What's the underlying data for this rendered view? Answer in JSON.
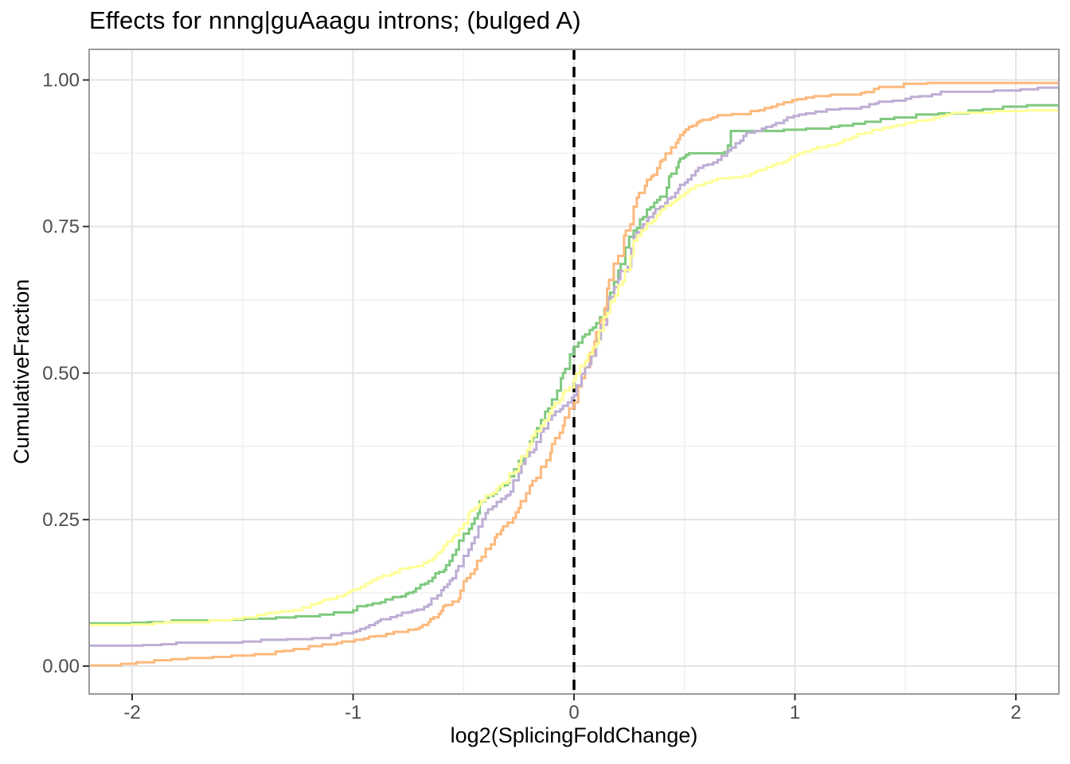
{
  "figure": {
    "background": "#ffffff",
    "text_color": "#4d4d4d",
    "title_color": "#000000"
  },
  "chart_data": {
    "type": "line",
    "subtype": "ecdf-step",
    "title": "Effects for nnng|guAaagu introns; (bulged A)",
    "xlabel": "log2(SplicingFoldChange)",
    "ylabel": "CumulativeFraction",
    "xlim": [
      -2.195,
      2.195
    ],
    "ylim": [
      0,
      1
    ],
    "grid": {
      "background": "#ffffff",
      "border_color": "#9a9a9a",
      "major_color": "#e4e4e4",
      "minor_color": "#efefef",
      "tick_color": "#333333",
      "major_x": [
        -2,
        -1,
        0,
        1,
        2
      ],
      "minor_x": [
        -1.5,
        -0.5,
        0.5,
        1.5
      ],
      "major_y": [
        0,
        0.25,
        0.5,
        0.75,
        1.0
      ],
      "minor_y": [
        0.125,
        0.375,
        0.625,
        0.875
      ]
    },
    "x_ticks": [
      {
        "label": "-2",
        "value": -2
      },
      {
        "label": "-1",
        "value": -1
      },
      {
        "label": "0",
        "value": 0
      },
      {
        "label": "1",
        "value": 1
      },
      {
        "label": "2",
        "value": 2
      }
    ],
    "y_ticks": [
      {
        "label": "0.00",
        "value": 0
      },
      {
        "label": "0.25",
        "value": 0.25
      },
      {
        "label": "0.50",
        "value": 0.5
      },
      {
        "label": "0.75",
        "value": 0.75
      },
      {
        "label": "1.00",
        "value": 1.0
      }
    ],
    "vline": {
      "x": 0,
      "color": "#000000",
      "style": "dashed"
    },
    "legend": "none",
    "series": [
      {
        "name": "green",
        "color": "#7FC97F",
        "points": [
          [
            -2.195,
            0.073
          ],
          [
            -2.0,
            0.074
          ],
          [
            -1.82,
            0.078
          ],
          [
            -1.55,
            0.079
          ],
          [
            -1.35,
            0.083
          ],
          [
            -1.15,
            0.088
          ],
          [
            -1.0,
            0.095
          ],
          [
            -0.875,
            0.109
          ],
          [
            -0.75,
            0.125
          ],
          [
            -0.66,
            0.145
          ],
          [
            -0.55,
            0.19
          ],
          [
            -0.5,
            0.226
          ],
          [
            -0.45,
            0.252
          ],
          [
            -0.4,
            0.287
          ],
          [
            -0.35,
            0.301
          ],
          [
            -0.3,
            0.313
          ],
          [
            -0.25,
            0.35
          ],
          [
            -0.2,
            0.383
          ],
          [
            -0.15,
            0.42
          ],
          [
            -0.1,
            0.455
          ],
          [
            -0.05,
            0.5
          ],
          [
            0.0,
            0.545
          ],
          [
            0.05,
            0.566
          ],
          [
            0.1,
            0.585
          ],
          [
            0.15,
            0.62
          ],
          [
            0.2,
            0.675
          ],
          [
            0.27,
            0.743
          ],
          [
            0.33,
            0.779
          ],
          [
            0.39,
            0.801
          ],
          [
            0.44,
            0.84
          ],
          [
            0.48,
            0.866
          ],
          [
            0.52,
            0.875
          ],
          [
            0.68,
            0.877
          ],
          [
            0.71,
            0.913
          ],
          [
            1.05,
            0.917
          ],
          [
            1.2,
            0.922
          ],
          [
            1.45,
            0.936
          ],
          [
            1.65,
            0.943
          ],
          [
            1.85,
            0.95
          ],
          [
            2.05,
            0.957
          ],
          [
            2.195,
            0.958
          ]
        ]
      },
      {
        "name": "orange",
        "color": "#FDB97C",
        "points": [
          [
            -2.195,
            0.001
          ],
          [
            -2.05,
            0.004
          ],
          [
            -1.9,
            0.01
          ],
          [
            -1.75,
            0.014
          ],
          [
            -1.55,
            0.018
          ],
          [
            -1.35,
            0.025
          ],
          [
            -1.2,
            0.034
          ],
          [
            -1.05,
            0.042
          ],
          [
            -0.95,
            0.047
          ],
          [
            -0.85,
            0.055
          ],
          [
            -0.75,
            0.062
          ],
          [
            -0.66,
            0.075
          ],
          [
            -0.55,
            0.11
          ],
          [
            -0.5,
            0.145
          ],
          [
            -0.45,
            0.165
          ],
          [
            -0.4,
            0.2
          ],
          [
            -0.35,
            0.225
          ],
          [
            -0.3,
            0.245
          ],
          [
            -0.25,
            0.27
          ],
          [
            -0.2,
            0.308
          ],
          [
            -0.15,
            0.34
          ],
          [
            -0.1,
            0.379
          ],
          [
            -0.05,
            0.41
          ],
          [
            0.0,
            0.45
          ],
          [
            0.05,
            0.51
          ],
          [
            0.1,
            0.57
          ],
          [
            0.15,
            0.644
          ],
          [
            0.2,
            0.7
          ],
          [
            0.27,
            0.784
          ],
          [
            0.33,
            0.83
          ],
          [
            0.39,
            0.861
          ],
          [
            0.44,
            0.885
          ],
          [
            0.48,
            0.906
          ],
          [
            0.52,
            0.92
          ],
          [
            0.58,
            0.932
          ],
          [
            0.65,
            0.94
          ],
          [
            0.8,
            0.947
          ],
          [
            0.95,
            0.962
          ],
          [
            1.05,
            0.97
          ],
          [
            1.16,
            0.975
          ],
          [
            1.3,
            0.978
          ],
          [
            1.38,
            0.988
          ],
          [
            1.6,
            0.995
          ],
          [
            2.195,
            0.996
          ]
        ]
      },
      {
        "name": "purple",
        "color": "#BEAED4",
        "points": [
          [
            -2.195,
            0.035
          ],
          [
            -1.95,
            0.036
          ],
          [
            -1.8,
            0.04
          ],
          [
            -1.5,
            0.042
          ],
          [
            -1.3,
            0.046
          ],
          [
            -1.1,
            0.053
          ],
          [
            -1.0,
            0.058
          ],
          [
            -0.875,
            0.08
          ],
          [
            -0.75,
            0.092
          ],
          [
            -0.66,
            0.105
          ],
          [
            -0.55,
            0.15
          ],
          [
            -0.5,
            0.188
          ],
          [
            -0.45,
            0.22
          ],
          [
            -0.4,
            0.261
          ],
          [
            -0.35,
            0.28
          ],
          [
            -0.3,
            0.292
          ],
          [
            -0.25,
            0.33
          ],
          [
            -0.2,
            0.365
          ],
          [
            -0.15,
            0.4
          ],
          [
            -0.1,
            0.428
          ],
          [
            -0.05,
            0.444
          ],
          [
            0.0,
            0.462
          ],
          [
            0.05,
            0.51
          ],
          [
            0.1,
            0.55
          ],
          [
            0.15,
            0.607
          ],
          [
            0.2,
            0.66
          ],
          [
            0.27,
            0.732
          ],
          [
            0.33,
            0.76
          ],
          [
            0.39,
            0.784
          ],
          [
            0.44,
            0.8
          ],
          [
            0.48,
            0.821
          ],
          [
            0.55,
            0.845
          ],
          [
            0.63,
            0.859
          ],
          [
            0.7,
            0.88
          ],
          [
            0.78,
            0.91
          ],
          [
            0.85,
            0.917
          ],
          [
            0.95,
            0.931
          ],
          [
            1.05,
            0.943
          ],
          [
            1.3,
            0.954
          ],
          [
            1.38,
            0.963
          ],
          [
            1.5,
            0.968
          ],
          [
            1.66,
            0.98
          ],
          [
            1.9,
            0.982
          ],
          [
            2.1,
            0.987
          ],
          [
            2.195,
            0.988
          ]
        ]
      },
      {
        "name": "yellow",
        "color": "#FFFF99",
        "points": [
          [
            -2.195,
            0.07
          ],
          [
            -2.0,
            0.071
          ],
          [
            -1.85,
            0.075
          ],
          [
            -1.65,
            0.078
          ],
          [
            -1.5,
            0.083
          ],
          [
            -1.35,
            0.092
          ],
          [
            -1.23,
            0.1
          ],
          [
            -1.1,
            0.115
          ],
          [
            -1.0,
            0.13
          ],
          [
            -0.875,
            0.152
          ],
          [
            -0.75,
            0.168
          ],
          [
            -0.66,
            0.18
          ],
          [
            -0.55,
            0.22
          ],
          [
            -0.5,
            0.243
          ],
          [
            -0.45,
            0.27
          ],
          [
            -0.4,
            0.291
          ],
          [
            -0.35,
            0.302
          ],
          [
            -0.3,
            0.315
          ],
          [
            -0.25,
            0.345
          ],
          [
            -0.2,
            0.379
          ],
          [
            -0.15,
            0.41
          ],
          [
            -0.1,
            0.442
          ],
          [
            -0.05,
            0.465
          ],
          [
            0.0,
            0.49
          ],
          [
            0.05,
            0.52
          ],
          [
            0.1,
            0.55
          ],
          [
            0.15,
            0.603
          ],
          [
            0.2,
            0.65
          ],
          [
            0.27,
            0.726
          ],
          [
            0.33,
            0.755
          ],
          [
            0.39,
            0.777
          ],
          [
            0.44,
            0.79
          ],
          [
            0.48,
            0.802
          ],
          [
            0.55,
            0.82
          ],
          [
            0.65,
            0.832
          ],
          [
            0.8,
            0.84
          ],
          [
            0.9,
            0.855
          ],
          [
            1.0,
            0.871
          ],
          [
            1.1,
            0.885
          ],
          [
            1.22,
            0.898
          ],
          [
            1.35,
            0.915
          ],
          [
            1.5,
            0.927
          ],
          [
            1.6,
            0.932
          ],
          [
            1.71,
            0.944
          ],
          [
            1.9,
            0.947
          ],
          [
            2.05,
            0.948
          ],
          [
            2.195,
            0.951
          ]
        ]
      }
    ]
  }
}
